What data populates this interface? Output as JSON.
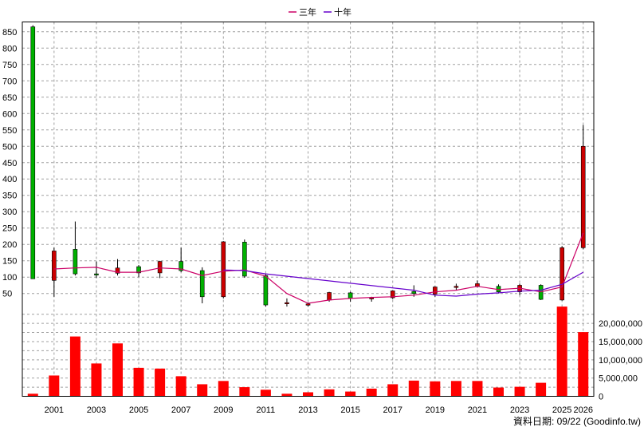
{
  "legend": {
    "items": [
      {
        "name": "三年",
        "color": "#cc0066"
      },
      {
        "name": "十年",
        "color": "#6600cc"
      }
    ]
  },
  "footer": {
    "source": "資料日期: 09/22 (Goodinfo.tw)"
  },
  "colors": {
    "up": "#cc0000",
    "down": "#00b000",
    "volume": "#ff0000",
    "grid": "#a0a0a0"
  },
  "chart_data": [
    {
      "type": "candlestick",
      "name": "price",
      "categories": [
        "2000",
        "2001",
        "2002",
        "2003",
        "2004",
        "2005",
        "2006",
        "2007",
        "2008",
        "2009",
        "2010",
        "2011",
        "2012",
        "2013",
        "2014",
        "2015",
        "2016",
        "2017",
        "2018",
        "2019",
        "2020",
        "2021",
        "2022",
        "2023",
        "2024",
        "2025",
        "2026"
      ],
      "x_tick_labels": [
        "2001",
        "2003",
        "2005",
        "2007",
        "2009",
        "2011",
        "2013",
        "2015",
        "2017",
        "2019",
        "2021",
        "2023",
        "2025",
        "2026"
      ],
      "ylim": [
        20,
        880
      ],
      "yticks": [
        50,
        100,
        150,
        200,
        250,
        300,
        350,
        400,
        450,
        500,
        550,
        600,
        650,
        700,
        750,
        800,
        850
      ],
      "grid": true,
      "legend_position": "top-center",
      "ohlc": [
        {
          "open": 865,
          "high": 870,
          "low": 95,
          "close": 95
        },
        {
          "open": 90,
          "high": 190,
          "low": 40,
          "close": 180
        },
        {
          "open": 185,
          "high": 270,
          "low": 105,
          "close": 110
        },
        {
          "open": 110,
          "high": 148,
          "low": 97,
          "close": 107
        },
        {
          "open": 112,
          "high": 155,
          "low": 105,
          "close": 128
        },
        {
          "open": 132,
          "high": 137,
          "low": 100,
          "close": 113
        },
        {
          "open": 113,
          "high": 150,
          "low": 97,
          "close": 148
        },
        {
          "open": 148,
          "high": 190,
          "low": 115,
          "close": 120
        },
        {
          "open": 120,
          "high": 130,
          "low": 20,
          "close": 40
        },
        {
          "open": 40,
          "high": 210,
          "low": 35,
          "close": 208
        },
        {
          "open": 207,
          "high": 215,
          "low": 98,
          "close": 103
        },
        {
          "open": 105,
          "high": 110,
          "low": 10,
          "close": 15
        },
        {
          "open": 22,
          "high": 35,
          "low": 10,
          "close": 22
        },
        {
          "open": 15,
          "high": 22,
          "low": 10,
          "close": 18
        },
        {
          "open": 30,
          "high": 55,
          "low": 25,
          "close": 53
        },
        {
          "open": 52,
          "high": 55,
          "low": 25,
          "close": 35
        },
        {
          "open": 35,
          "high": 40,
          "low": 25,
          "close": 37
        },
        {
          "open": 37,
          "high": 60,
          "low": 33,
          "close": 58
        },
        {
          "open": 56,
          "high": 75,
          "low": 40,
          "close": 50
        },
        {
          "open": 48,
          "high": 72,
          "low": 40,
          "close": 70
        },
        {
          "open": 70,
          "high": 80,
          "low": 60,
          "close": 72
        },
        {
          "open": 72,
          "high": 90,
          "low": 68,
          "close": 80
        },
        {
          "open": 72,
          "high": 78,
          "low": 50,
          "close": 55
        },
        {
          "open": 55,
          "high": 80,
          "low": 45,
          "close": 75
        },
        {
          "open": 75,
          "high": 78,
          "low": 30,
          "close": 32
        },
        {
          "open": 30,
          "high": 195,
          "low": 28,
          "close": 190
        },
        {
          "open": 190,
          "high": 565,
          "low": 185,
          "close": 500
        }
      ],
      "series": [
        {
          "name": "三年",
          "color": "#cc0066",
          "x": [
            "2001",
            "2002",
            "2003",
            "2004",
            "2005",
            "2006",
            "2007",
            "2008",
            "2009",
            "2010",
            "2011",
            "2012",
            "2013",
            "2014",
            "2015",
            "2016",
            "2017",
            "2018",
            "2019",
            "2020",
            "2021",
            "2022",
            "2023",
            "2024",
            "2025",
            "2026"
          ],
          "values": [
            125,
            128,
            130,
            115,
            115,
            128,
            125,
            105,
            118,
            122,
            103,
            50,
            20,
            30,
            35,
            38,
            40,
            45,
            55,
            60,
            72,
            62,
            66,
            55,
            70,
            235
          ]
        },
        {
          "name": "十年",
          "color": "#6600cc",
          "x": [
            "2009",
            "2010",
            "2011",
            "2018",
            "2019",
            "2020",
            "2021",
            "2022",
            "2023",
            "2024",
            "2025",
            "2026"
          ],
          "values": [
            122,
            120,
            110,
            60,
            45,
            42,
            48,
            52,
            57,
            60,
            78,
            115
          ]
        }
      ]
    },
    {
      "type": "bar",
      "name": "volume",
      "categories": [
        "2000",
        "2001",
        "2002",
        "2003",
        "2004",
        "2005",
        "2006",
        "2007",
        "2008",
        "2009",
        "2010",
        "2011",
        "2012",
        "2013",
        "2014",
        "2015",
        "2016",
        "2017",
        "2018",
        "2019",
        "2020",
        "2021",
        "2022",
        "2023",
        "2024",
        "2025",
        "2026"
      ],
      "values": [
        700000,
        5700000,
        16400000,
        9000000,
        14500000,
        7800000,
        7600000,
        5500000,
        3300000,
        4200000,
        2500000,
        1800000,
        700000,
        1100000,
        1900000,
        1300000,
        2100000,
        3300000,
        4300000,
        4100000,
        4200000,
        4200000,
        2400000,
        2600000,
        3700000,
        24600000,
        17600000
      ],
      "ylim": [
        0,
        25500000
      ],
      "yticks": [
        "0",
        "5,000,000",
        "10,000,000",
        "15,000,000",
        "20,000,000"
      ]
    }
  ]
}
